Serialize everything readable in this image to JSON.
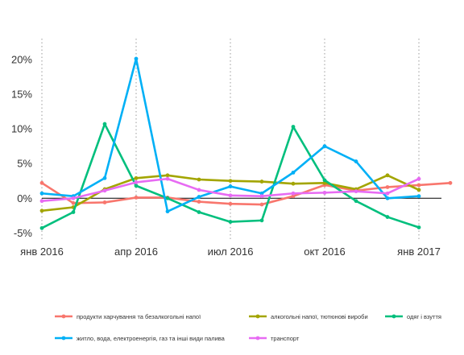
{
  "chart_data": {
    "type": "line",
    "x": [
      "2016-01",
      "2016-02",
      "2016-03",
      "2016-04",
      "2016-05",
      "2016-06",
      "2016-07",
      "2016-08",
      "2016-09",
      "2016-10",
      "2016-11",
      "2016-12",
      "2017-01",
      "2017-02"
    ],
    "x_tick_labels": [
      "янв 2016",
      "апр 2016",
      "июл 2016",
      "окт 2016",
      "янв 2017"
    ],
    "x_tick_positions": [
      "2016-01",
      "2016-04",
      "2016-07",
      "2016-10",
      "2017-01"
    ],
    "y_tick_labels": [
      "20%",
      "15%",
      "10%",
      "5%",
      "0%",
      "-5%"
    ],
    "y_tick_values": [
      20,
      15,
      10,
      5,
      0,
      -5
    ],
    "ylim": [
      -6,
      23
    ],
    "y_unit": "%",
    "grid": "vertical dotted at quarter ticks",
    "zero_line": true,
    "legend_position": "bottom",
    "series": [
      {
        "name": "продукти харчування та безалкогольні напої",
        "color": "#F8766D",
        "values": [
          2.2,
          -0.7,
          -0.6,
          0.1,
          0.1,
          -0.5,
          -0.8,
          -0.9,
          0.3,
          1.9,
          1.1,
          1.6,
          1.9,
          2.2
        ]
      },
      {
        "name": "алкогольні напої, тютюнові вироби",
        "color": "#A3A500",
        "values": [
          -1.8,
          -1.3,
          1.3,
          2.9,
          3.3,
          2.7,
          2.5,
          2.4,
          2.1,
          2.2,
          1.3,
          3.3,
          1.2,
          null
        ]
      },
      {
        "name": "одяг і взуття",
        "color": "#00BF7D",
        "values": [
          -4.3,
          -2.0,
          10.7,
          1.8,
          0.0,
          -2.0,
          -3.4,
          -3.2,
          10.3,
          2.6,
          -0.4,
          -2.7,
          -4.2,
          null
        ]
      },
      {
        "name": "житло, вода, електроенергія, газ та інші види палива",
        "color": "#00B0F6",
        "values": [
          0.7,
          0.3,
          2.9,
          20.1,
          -1.9,
          0.2,
          1.7,
          0.7,
          3.7,
          7.5,
          5.3,
          0.0,
          0.3,
          null
        ]
      },
      {
        "name": "транспорт",
        "color": "#E76BF3",
        "values": [
          -0.4,
          0.0,
          1.1,
          2.3,
          2.8,
          1.2,
          0.4,
          0.3,
          0.7,
          0.8,
          1.0,
          0.7,
          2.8,
          null
        ]
      }
    ]
  }
}
